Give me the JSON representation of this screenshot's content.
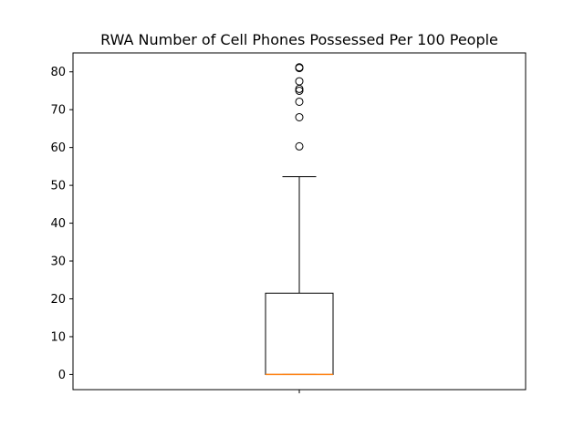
{
  "chart_data": {
    "type": "box",
    "title": "RWA Number of Cell Phones Possessed Per 100 People",
    "xlabel": "",
    "ylabel": "",
    "ylim": [
      -4,
      85
    ],
    "yticks": [
      0,
      10,
      20,
      30,
      40,
      50,
      60,
      70,
      80
    ],
    "grid": false,
    "box": {
      "whisker_low": 0,
      "q1": 0,
      "median": 0,
      "q3": 21.5,
      "whisker_high": 52.3,
      "outliers": [
        60.3,
        68,
        72.1,
        75,
        75.5,
        77.5,
        81,
        81.2
      ]
    },
    "colors": {
      "box": "#000000",
      "median": "#ff7f0e",
      "flier": "#000000"
    }
  }
}
